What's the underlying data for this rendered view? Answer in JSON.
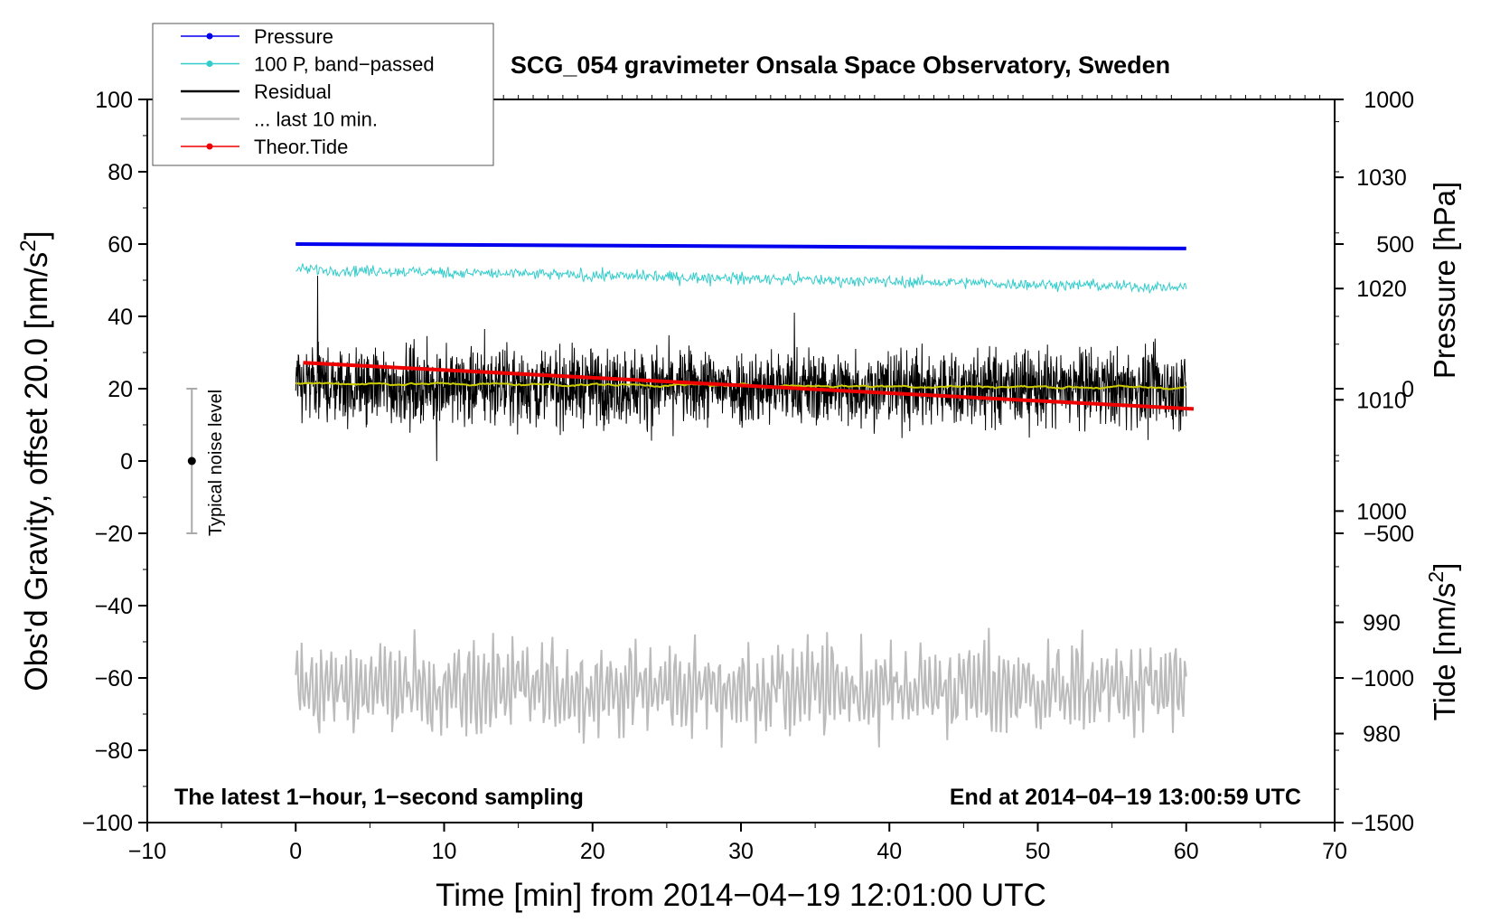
{
  "chart_data": {
    "type": "line",
    "title": "SCG_054 gravimeter Onsala Space Observatory, Sweden",
    "xlabel": "Time [min] from 2014−04−19 12:01:00 UTC",
    "ylabel_left": "Obs'd Gravity, offset 20.0 [nm/s²]",
    "ylabel_right_pressure": "Pressure [hPa]",
    "ylabel_right_tide": "Tide [nm/s²]",
    "xlim": [
      -10,
      70
    ],
    "ylim": [
      -100,
      100
    ],
    "pressure_axis_range": [
      972,
      1037
    ],
    "tide_axis_range": [
      -1500,
      1000
    ],
    "x_ticks": [
      {
        "v": -10,
        "label": "−10"
      },
      {
        "v": 0,
        "label": "0"
      },
      {
        "v": 10,
        "label": "10"
      },
      {
        "v": 20,
        "label": "20"
      },
      {
        "v": 30,
        "label": "30"
      },
      {
        "v": 40,
        "label": "40"
      },
      {
        "v": 50,
        "label": "50"
      },
      {
        "v": 60,
        "label": "60"
      },
      {
        "v": 70,
        "label": "70"
      }
    ],
    "y_ticks_left": [
      {
        "v": 100,
        "label": "100"
      },
      {
        "v": 80,
        "label": "80"
      },
      {
        "v": 60,
        "label": "60"
      },
      {
        "v": 40,
        "label": "40"
      },
      {
        "v": 20,
        "label": "20"
      },
      {
        "v": 0,
        "label": "0"
      },
      {
        "v": -20,
        "label": "−20"
      },
      {
        "v": -40,
        "label": "−40"
      },
      {
        "v": -60,
        "label": "−60"
      },
      {
        "v": -80,
        "label": "−80"
      },
      {
        "v": -100,
        "label": "−100"
      }
    ],
    "pressure_ticks": [
      {
        "v": 1030,
        "label": "1030"
      },
      {
        "v": 1020,
        "label": "1020"
      },
      {
        "v": 1010,
        "label": "1010"
      },
      {
        "v": 1000,
        "label": "1000"
      },
      {
        "v": 990,
        "label": "990"
      },
      {
        "v": 980,
        "label": "980"
      }
    ],
    "tide_ticks": [
      {
        "v": 1000,
        "label": "1000"
      },
      {
        "v": 500,
        "label": "500"
      },
      {
        "v": 0,
        "label": "0"
      },
      {
        "v": -500,
        "label": "−500"
      },
      {
        "v": -1000,
        "label": "−1000"
      },
      {
        "v": -1500,
        "label": "−1500"
      }
    ],
    "series": [
      {
        "name": "Pressure",
        "color": "#0000ee",
        "axis": "pressure",
        "x": [
          0,
          60
        ],
        "values": [
          1024,
          1023.6
        ]
      },
      {
        "name": "100 P, band−passed",
        "color": "#33cccc",
        "axis": "left",
        "x": [
          0,
          60
        ],
        "baseline": [
          53,
          48
        ],
        "noise_amplitude": 1.5
      },
      {
        "name": "Residual",
        "color": "#000000",
        "axis": "left",
        "x": [
          0,
          60
        ],
        "baseline": [
          21,
          20
        ],
        "noise_amplitude": 10
      },
      {
        "name": "smoothed residual",
        "color": "#cccc00",
        "axis": "left",
        "x": [
          0,
          60
        ],
        "baseline": [
          21.5,
          20.3
        ],
        "noise_amplitude": 0.6
      },
      {
        "name": "... last 10 min.",
        "color": "#bbbbbb",
        "axis": "left",
        "x": [
          0,
          60
        ],
        "baseline": [
          -63,
          -63
        ],
        "noise_amplitude": 12
      },
      {
        "name": "Theor.Tide",
        "color": "#ee0000",
        "axis": "tide",
        "x": [
          0.5,
          60.5
        ],
        "values": [
          90,
          -70
        ]
      }
    ],
    "noise_bar": {
      "x": -7,
      "center": 0,
      "low": -20,
      "high": 20,
      "label": "Typical noise level"
    },
    "annotations": {
      "left": "The latest 1−hour, 1−second sampling",
      "right": "End at 2014−04−19 13:00:59 UTC"
    },
    "legend": {
      "placement": "top-left",
      "entries": [
        {
          "label": "Pressure",
          "color": "#0000ee",
          "marker": true
        },
        {
          "label": "100 P, band−passed",
          "color": "#33cccc",
          "marker": true
        },
        {
          "label": "Residual",
          "color": "#000000",
          "marker": false
        },
        {
          "label": "... last 10 min.",
          "color": "#bbbbbb",
          "marker": false
        },
        {
          "label": "Theor.Tide",
          "color": "#ee0000",
          "marker": true
        }
      ]
    }
  }
}
